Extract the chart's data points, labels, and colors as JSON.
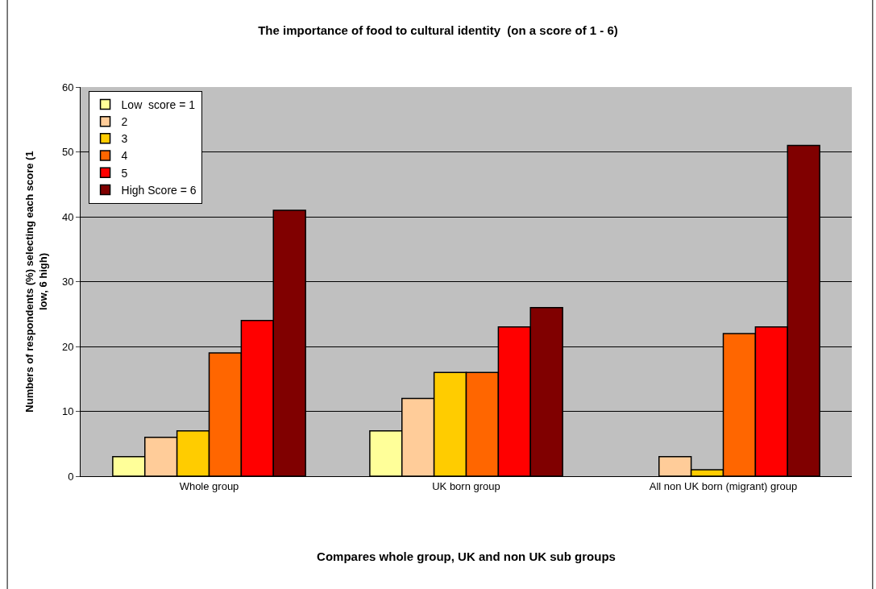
{
  "chart_data": {
    "type": "bar",
    "title": "The importance of food to cultural identity  (on a score of 1 - 6)",
    "xlabel": "Compares whole group, UK and non UK sub groups",
    "ylabel": "Numbers of respondents (%) selecting each score (1\nlow, 6 high)",
    "categories": [
      "Whole group",
      "UK born group",
      "All non UK born (migrant) group"
    ],
    "series": [
      {
        "name": "Low  score = 1",
        "color": "#ffff99",
        "values": [
          3,
          7,
          0
        ]
      },
      {
        "name": "2",
        "color": "#ffcc99",
        "values": [
          6,
          12,
          3
        ]
      },
      {
        "name": "3",
        "color": "#ffcc00",
        "values": [
          7,
          16,
          1
        ]
      },
      {
        "name": "4",
        "color": "#ff6600",
        "values": [
          19,
          16,
          22
        ]
      },
      {
        "name": "5",
        "color": "#ff0000",
        "values": [
          24,
          23,
          23
        ]
      },
      {
        "name": "High Score = 6",
        "color": "#800000",
        "values": [
          41,
          26,
          51
        ]
      }
    ],
    "ylim": [
      0,
      60
    ],
    "yticks": [
      0,
      10,
      20,
      30,
      40,
      50,
      60
    ],
    "grid": "y",
    "legend": "top left"
  }
}
